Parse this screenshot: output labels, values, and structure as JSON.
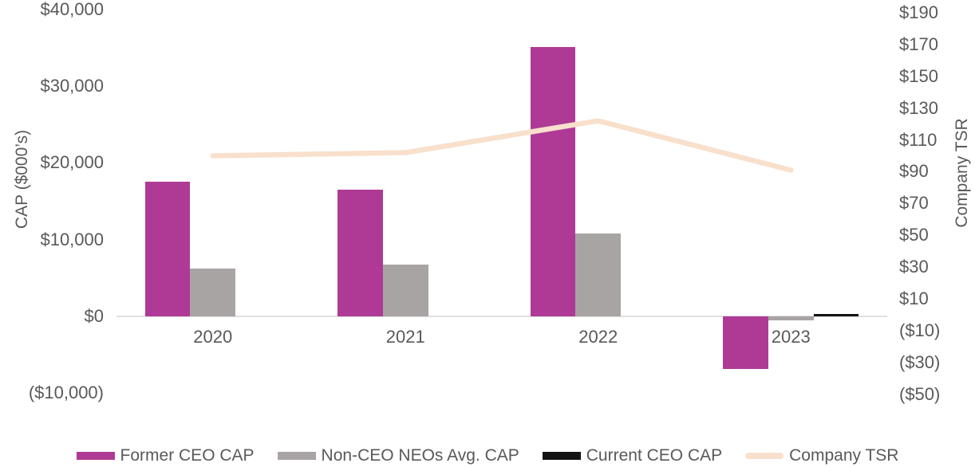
{
  "chart_data": {
    "type": "combo-bar-line",
    "title": "",
    "categories": [
      "2020",
      "2021",
      "2022",
      "2023"
    ],
    "series": [
      {
        "name": "Former CEO CAP",
        "type": "bar",
        "axis": "left",
        "color": "#ae3a96",
        "values": [
          17600,
          16500,
          35100,
          -6900
        ]
      },
      {
        "name": "Non-CEO NEOs Avg. CAP",
        "type": "bar",
        "axis": "left",
        "color": "#a9a4a4",
        "values": [
          6200,
          6800,
          10800,
          -550
        ]
      },
      {
        "name": "Current CEO CAP",
        "type": "bar",
        "axis": "left",
        "color": "#131313",
        "values": [
          0,
          0,
          0,
          300
        ]
      },
      {
        "name": "Company TSR",
        "type": "line",
        "axis": "right",
        "color": "#f8e0cc",
        "values": [
          100,
          102,
          122,
          91
        ]
      }
    ],
    "left_axis": {
      "title": "CAP ($000’s)",
      "range": [
        -10000,
        40000
      ],
      "tick_values": [
        40000,
        30000,
        20000,
        10000,
        0,
        -10000
      ],
      "tick_labels": [
        "$40,000",
        "$30,000",
        "$20,000",
        "$10,000",
        "$0",
        "($10,000)"
      ]
    },
    "right_axis": {
      "title": "Company TSR",
      "range": [
        -50,
        190
      ],
      "tick_values": [
        190,
        170,
        150,
        130,
        110,
        90,
        70,
        50,
        30,
        10,
        -10,
        -30,
        -50
      ],
      "tick_labels": [
        "$190",
        "$170",
        "$150",
        "$130",
        "$110",
        "$90",
        "$70",
        "$50",
        "$30",
        "$10",
        "($10)",
        "($30)",
        "($50)"
      ]
    },
    "legend": {
      "position": "bottom",
      "entries": [
        "Former CEO CAP",
        "Non-CEO NEOs Avg. CAP",
        "Current CEO CAP",
        "Company TSR"
      ]
    },
    "grid": "off",
    "background": "#ffffff"
  }
}
